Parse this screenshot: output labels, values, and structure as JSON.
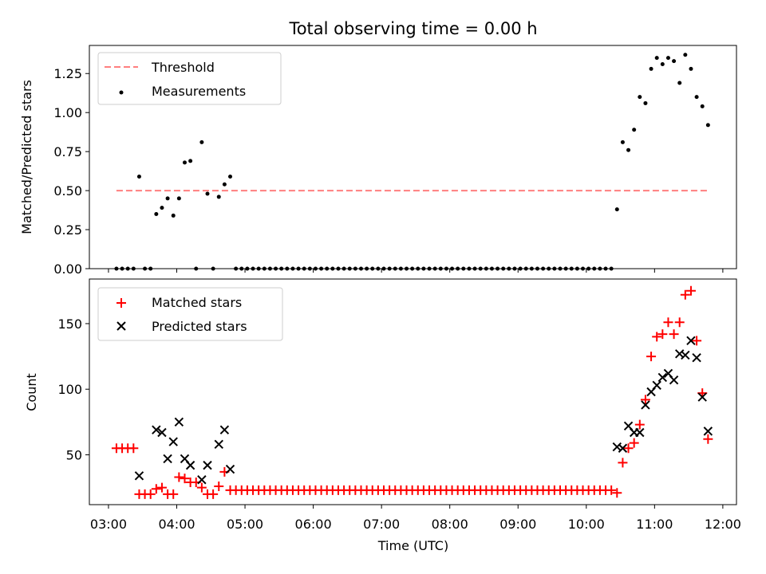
{
  "figure": {
    "title": "Total observing time = 0.00 h",
    "xlabel": "Time (UTC)",
    "x_ticks": [
      "03:00",
      "04:00",
      "05:00",
      "06:00",
      "07:00",
      "08:00",
      "09:00",
      "10:00",
      "11:00",
      "12:00"
    ],
    "xlim_hours": [
      2.72,
      12.2
    ],
    "colors": {
      "matched": "#ff0000",
      "predicted": "#000000",
      "threshold": "#ff7f7f",
      "measurements": "#000000"
    }
  },
  "chart_data": [
    {
      "type": "scatter",
      "ylabel": "Matched/Predicted stars",
      "ylim": [
        0,
        1.43
      ],
      "y_ticks": [
        "0.00",
        "0.25",
        "0.50",
        "0.75",
        "1.00",
        "1.25"
      ],
      "y_tick_values": [
        0,
        0.25,
        0.5,
        0.75,
        1.0,
        1.25
      ],
      "legend_position": "upper-left",
      "legend": [
        "Threshold",
        "Measurements"
      ],
      "threshold": {
        "name": "Threshold",
        "value": 0.5,
        "x_range": [
          "03:07",
          "11:47"
        ]
      },
      "measurements": {
        "name": "Measurements",
        "x": [
          "03:07",
          "03:12",
          "03:17",
          "03:22",
          "03:27",
          "03:32",
          "03:37",
          "03:42",
          "03:47",
          "03:52",
          "03:57",
          "04:02",
          "04:07",
          "04:12",
          "04:17",
          "04:22",
          "04:27",
          "04:32",
          "04:37",
          "04:42",
          "04:47",
          "04:52",
          "04:57",
          "05:02",
          "05:07",
          "05:12",
          "05:17",
          "05:22",
          "05:27",
          "05:32",
          "05:37",
          "05:42",
          "05:47",
          "05:52",
          "05:57",
          "06:02",
          "06:07",
          "06:12",
          "06:17",
          "06:22",
          "06:27",
          "06:32",
          "06:37",
          "06:42",
          "06:47",
          "06:52",
          "06:57",
          "07:02",
          "07:07",
          "07:12",
          "07:17",
          "07:22",
          "07:27",
          "07:32",
          "07:37",
          "07:42",
          "07:47",
          "07:52",
          "07:57",
          "08:02",
          "08:07",
          "08:12",
          "08:17",
          "08:22",
          "08:27",
          "08:32",
          "08:37",
          "08:42",
          "08:47",
          "08:52",
          "08:57",
          "09:02",
          "09:07",
          "09:12",
          "09:17",
          "09:22",
          "09:27",
          "09:32",
          "09:37",
          "09:42",
          "09:47",
          "09:52",
          "09:57",
          "10:02",
          "10:07",
          "10:12",
          "10:17",
          "10:22",
          "10:27",
          "10:32",
          "10:37",
          "10:42",
          "10:47",
          "10:52",
          "10:57",
          "11:02",
          "11:07",
          "11:12",
          "11:17",
          "11:22",
          "11:27",
          "11:32",
          "11:37",
          "11:42",
          "11:47"
        ],
        "y": [
          0,
          0,
          0,
          0,
          0.59,
          0,
          0,
          0.35,
          0.39,
          0.45,
          0.34,
          0.45,
          0.68,
          0.69,
          0,
          0.81,
          0.48,
          0,
          0.46,
          0.54,
          0.59,
          0,
          0,
          0,
          0,
          0,
          0,
          0,
          0,
          0,
          0,
          0,
          0,
          0,
          0,
          0,
          0,
          0,
          0,
          0,
          0,
          0,
          0,
          0,
          0,
          0,
          0,
          0,
          0,
          0,
          0,
          0,
          0,
          0,
          0,
          0,
          0,
          0,
          0,
          0,
          0,
          0,
          0,
          0,
          0,
          0,
          0,
          0,
          0,
          0,
          0,
          0,
          0,
          0,
          0,
          0,
          0,
          0,
          0,
          0,
          0,
          0,
          0,
          0,
          0,
          0,
          0,
          0,
          0.38,
          0.81,
          0.76,
          0.89,
          1.1,
          1.06,
          1.28,
          1.35,
          1.31,
          1.35,
          1.33,
          1.19,
          1.37,
          1.28,
          1.1,
          1.04,
          0.92
        ]
      }
    },
    {
      "type": "scatter",
      "ylabel": "Count",
      "ylim": [
        12,
        184
      ],
      "y_ticks": [
        "50",
        "100",
        "150"
      ],
      "y_tick_values": [
        50,
        100,
        150
      ],
      "legend_position": "upper-left",
      "legend": [
        "Matched stars",
        "Predicted stars"
      ],
      "series": [
        {
          "name": "Matched stars",
          "marker": "plus",
          "x": [
            "03:07",
            "03:12",
            "03:17",
            "03:22",
            "03:27",
            "03:32",
            "03:37",
            "03:42",
            "03:47",
            "03:52",
            "03:57",
            "04:02",
            "04:07",
            "04:12",
            "04:17",
            "04:22",
            "04:27",
            "04:32",
            "04:37",
            "04:42",
            "04:47",
            "04:52",
            "04:57",
            "05:02",
            "05:07",
            "05:12",
            "05:17",
            "05:22",
            "05:27",
            "05:32",
            "05:37",
            "05:42",
            "05:47",
            "05:52",
            "05:57",
            "06:02",
            "06:07",
            "06:12",
            "06:17",
            "06:22",
            "06:27",
            "06:32",
            "06:37",
            "06:42",
            "06:47",
            "06:52",
            "06:57",
            "07:02",
            "07:07",
            "07:12",
            "07:17",
            "07:22",
            "07:27",
            "07:32",
            "07:37",
            "07:42",
            "07:47",
            "07:52",
            "07:57",
            "08:02",
            "08:07",
            "08:12",
            "08:17",
            "08:22",
            "08:27",
            "08:32",
            "08:37",
            "08:42",
            "08:47",
            "08:52",
            "08:57",
            "09:02",
            "09:07",
            "09:12",
            "09:17",
            "09:22",
            "09:27",
            "09:32",
            "09:37",
            "09:42",
            "09:47",
            "09:52",
            "09:57",
            "10:02",
            "10:07",
            "10:12",
            "10:17",
            "10:22",
            "10:27",
            "10:32",
            "10:37",
            "10:42",
            "10:47",
            "10:52",
            "10:57",
            "11:02",
            "11:07",
            "11:12",
            "11:17",
            "11:22",
            "11:27",
            "11:32",
            "11:37",
            "11:42",
            "11:47"
          ],
          "y": [
            55,
            55,
            55,
            55,
            20,
            20,
            20,
            24,
            25,
            20,
            20,
            33,
            32,
            29,
            29,
            25,
            20,
            20,
            26,
            37,
            23,
            23,
            23,
            23,
            23,
            23,
            23,
            23,
            23,
            23,
            23,
            23,
            23,
            23,
            23,
            23,
            23,
            23,
            23,
            23,
            23,
            23,
            23,
            23,
            23,
            23,
            23,
            23,
            23,
            23,
            23,
            23,
            23,
            23,
            23,
            23,
            23,
            23,
            23,
            23,
            23,
            23,
            23,
            23,
            23,
            23,
            23,
            23,
            23,
            23,
            23,
            23,
            23,
            23,
            23,
            23,
            23,
            23,
            23,
            23,
            23,
            23,
            23,
            23,
            23,
            23,
            23,
            23,
            21,
            44,
            55,
            59,
            73,
            92,
            125,
            140,
            142,
            151,
            142,
            151,
            172,
            175,
            137,
            97,
            62
          ]
        },
        {
          "name": "Predicted stars",
          "marker": "x",
          "x": [
            "03:27",
            "03:42",
            "03:47",
            "03:52",
            "03:57",
            "04:02",
            "04:07",
            "04:12",
            "04:22",
            "04:27",
            "04:37",
            "04:42",
            "04:47",
            "10:27",
            "10:32",
            "10:37",
            "10:42",
            "10:47",
            "10:52",
            "10:57",
            "11:02",
            "11:07",
            "11:12",
            "11:17",
            "11:22",
            "11:27",
            "11:32",
            "11:37",
            "11:42",
            "11:47"
          ],
          "y": [
            34,
            69,
            67,
            47,
            60,
            75,
            47,
            42,
            31,
            42,
            58,
            69,
            39,
            56,
            55,
            72,
            67,
            67,
            88,
            98,
            103,
            109,
            112,
            107,
            127,
            126,
            137,
            124,
            94,
            68
          ]
        }
      ]
    }
  ]
}
